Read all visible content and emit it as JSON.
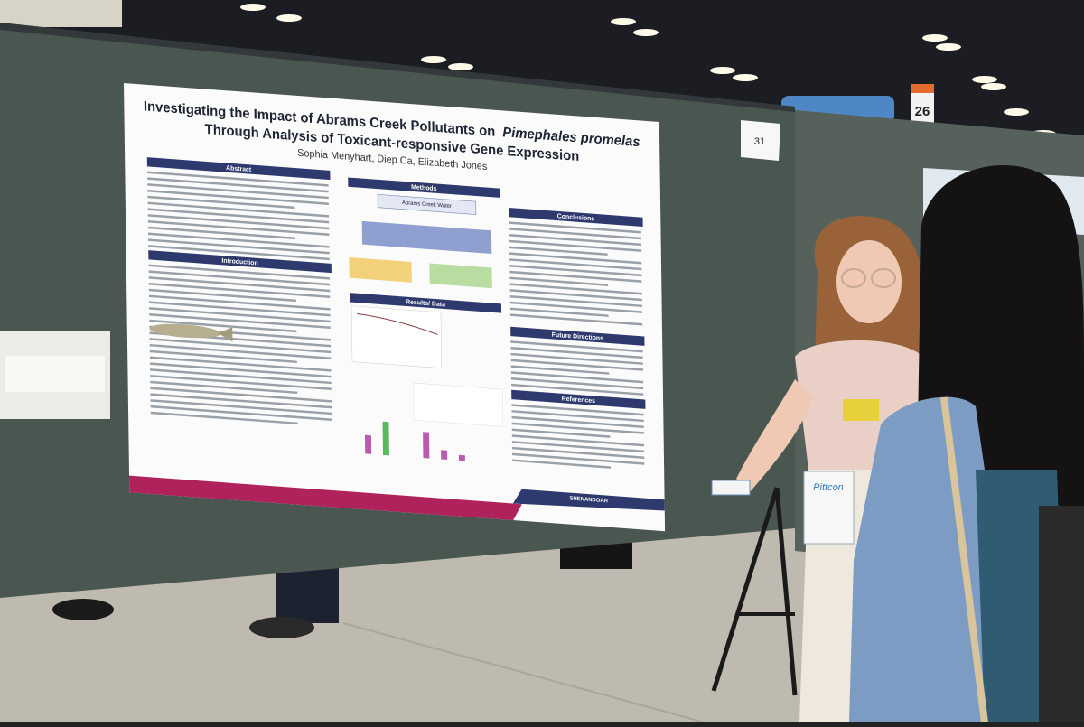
{
  "poster": {
    "title_line1": "Investigating the Impact of Abrams Creek Pollutants on",
    "title_species": "Pimephales promelas",
    "title_line2": "Through Analysis of Toxicant-responsive Gene Expression",
    "authors": "Sophia Menyhart, Diep Ca, Elizabeth Jones",
    "sections": [
      "Abstract",
      "Introduction",
      "Methods",
      "Results/ Data",
      "Conclusions",
      "Future Directions",
      "References"
    ],
    "methods_box": "Abrams Creek Water",
    "logo": "SHENANDOAH"
  },
  "signs": {
    "board_number": "31",
    "aisle_number": "26"
  },
  "badge": "Pittcon"
}
